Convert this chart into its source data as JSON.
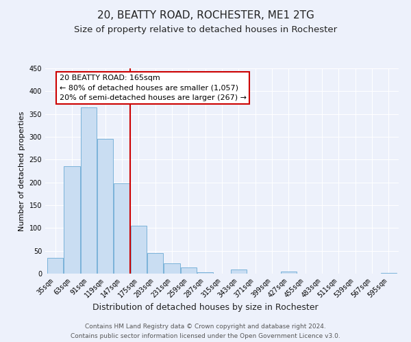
{
  "title": "20, BEATTY ROAD, ROCHESTER, ME1 2TG",
  "subtitle": "Size of property relative to detached houses in Rochester",
  "xlabel": "Distribution of detached houses by size in Rochester",
  "ylabel": "Number of detached properties",
  "bin_labels": [
    "35sqm",
    "63sqm",
    "91sqm",
    "119sqm",
    "147sqm",
    "175sqm",
    "203sqm",
    "231sqm",
    "259sqm",
    "287sqm",
    "315sqm",
    "343sqm",
    "371sqm",
    "399sqm",
    "427sqm",
    "455sqm",
    "483sqm",
    "511sqm",
    "539sqm",
    "567sqm",
    "595sqm"
  ],
  "bar_values": [
    35,
    235,
    365,
    295,
    198,
    105,
    45,
    22,
    14,
    3,
    0,
    9,
    0,
    0,
    4,
    0,
    0,
    0,
    0,
    0,
    2
  ],
  "bar_color": "#c9ddf2",
  "bar_edge_color": "#6aaad4",
  "vline_x": 4.5,
  "vline_color": "#cc0000",
  "ylim": [
    0,
    450
  ],
  "yticks": [
    0,
    50,
    100,
    150,
    200,
    250,
    300,
    350,
    400,
    450
  ],
  "annotation_title": "20 BEATTY ROAD: 165sqm",
  "annotation_line1": "← 80% of detached houses are smaller (1,057)",
  "annotation_line2": "20% of semi-detached houses are larger (267) →",
  "annotation_box_facecolor": "#ffffff",
  "annotation_box_edgecolor": "#cc0000",
  "footnote1": "Contains HM Land Registry data © Crown copyright and database right 2024.",
  "footnote2": "Contains public sector information licensed under the Open Government Licence v3.0.",
  "bg_color": "#edf1fb",
  "plot_bg_color": "#edf1fb",
  "grid_color": "#ffffff",
  "title_fontsize": 11,
  "subtitle_fontsize": 9.5,
  "xlabel_fontsize": 9,
  "ylabel_fontsize": 8,
  "tick_fontsize": 7,
  "annotation_fontsize": 8,
  "footnote_fontsize": 6.5
}
